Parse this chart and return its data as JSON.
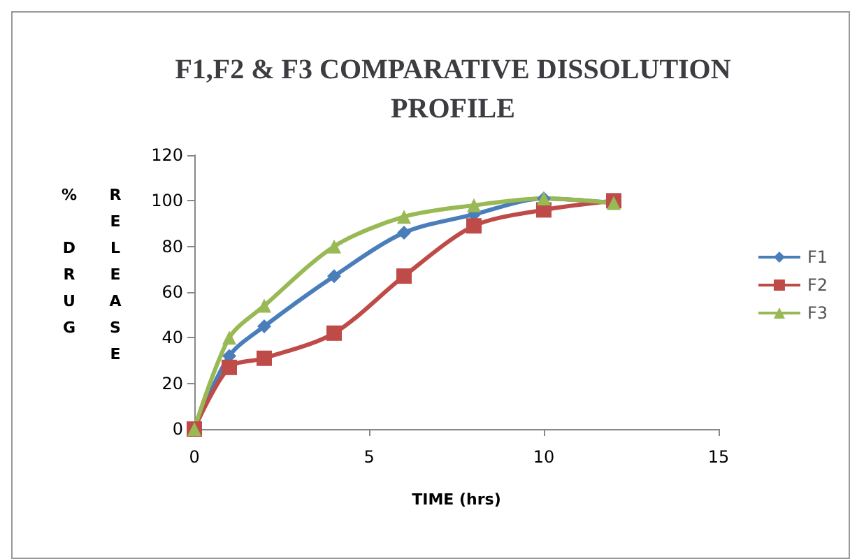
{
  "chart_data": {
    "type": "line",
    "title": "F1,F2 & F3 COMPARATIVE DISSOLUTION\nPROFILE",
    "xlabel": "TIME (hrs)",
    "ylabel": "% DRUG RELEASE",
    "x": [
      0,
      1,
      2,
      4,
      6,
      8,
      10,
      12
    ],
    "series": [
      {
        "name": "F1",
        "color": "#4a7ebb",
        "marker": "diamond",
        "values": [
          0,
          32,
          45,
          67,
          86,
          94,
          101,
          99
        ]
      },
      {
        "name": "F2",
        "color": "#be4b48",
        "marker": "square",
        "values": [
          0,
          27,
          31,
          42,
          67,
          89,
          96,
          100
        ]
      },
      {
        "name": "F3",
        "color": "#98b954",
        "marker": "triangle",
        "values": [
          0,
          40,
          54,
          80,
          93,
          98,
          101,
          99
        ]
      }
    ],
    "xlim": [
      0,
      15
    ],
    "xticks": [
      0,
      5,
      10,
      15
    ],
    "ylim": [
      0,
      120
    ],
    "yticks": [
      0,
      20,
      40,
      60,
      80,
      100,
      120
    ],
    "grid": false,
    "legend": "right"
  }
}
